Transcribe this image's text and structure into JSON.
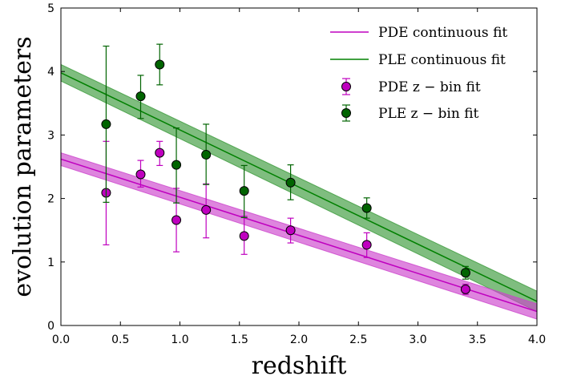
{
  "chart_data": {
    "type": "scatter",
    "title": "",
    "xlabel": "redshift",
    "ylabel": "evolution parameters",
    "xlim": [
      0.0,
      4.0
    ],
    "ylim": [
      0,
      5
    ],
    "xticks": [
      "0.0",
      "0.5",
      "1.0",
      "1.5",
      "2.0",
      "2.5",
      "3.0",
      "3.5",
      "4.0"
    ],
    "yticks": [
      "0",
      "1",
      "2",
      "3",
      "4",
      "5"
    ],
    "grid": false,
    "legend_position": "top-right",
    "series": [
      {
        "name": "PDE continuous fit",
        "kind": "line_band",
        "color": "#bf00bf",
        "band_color": "#cc44cc",
        "x": [
          0.0,
          4.0
        ],
        "y": [
          2.62,
          0.22
        ],
        "lower": [
          2.52,
          0.1
        ],
        "upper": [
          2.72,
          0.34
        ]
      },
      {
        "name": "PLE continuous fit",
        "kind": "line_band",
        "color": "#008000",
        "band_color": "#3a9a3a",
        "x": [
          0.0,
          4.0
        ],
        "y": [
          3.98,
          0.38
        ],
        "lower": [
          3.85,
          0.22
        ],
        "upper": [
          4.11,
          0.54
        ]
      },
      {
        "name": "PDE z − bin fit",
        "kind": "errorbar",
        "color": "#bf00bf",
        "x": [
          0.38,
          0.67,
          0.83,
          0.97,
          1.22,
          1.54,
          1.93,
          2.57,
          3.4
        ],
        "y": [
          2.09,
          2.38,
          2.72,
          1.66,
          1.82,
          1.41,
          1.5,
          1.27,
          0.57
        ],
        "yerr_low": [
          0.82,
          0.2,
          0.2,
          0.5,
          0.44,
          0.29,
          0.2,
          0.2,
          0.08
        ],
        "yerr_high": [
          0.81,
          0.22,
          0.18,
          0.5,
          0.41,
          0.31,
          0.19,
          0.19,
          0.08
        ]
      },
      {
        "name": "PLE z − bin fit",
        "kind": "errorbar",
        "color": "#006400",
        "x": [
          0.38,
          0.67,
          0.83,
          0.97,
          1.22,
          1.54,
          1.93,
          2.57,
          3.4
        ],
        "y": [
          3.17,
          3.61,
          4.11,
          2.53,
          2.69,
          2.12,
          2.25,
          1.85,
          0.83
        ],
        "yerr_low": [
          1.23,
          0.35,
          0.32,
          0.6,
          0.47,
          0.42,
          0.27,
          0.16,
          0.1
        ],
        "yerr_high": [
          1.23,
          0.33,
          0.32,
          0.58,
          0.48,
          0.4,
          0.28,
          0.16,
          0.1
        ]
      }
    ]
  }
}
